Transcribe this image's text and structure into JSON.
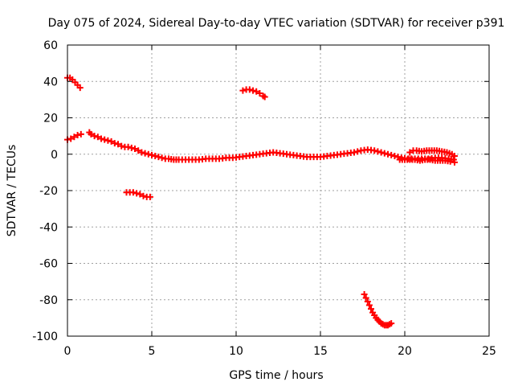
{
  "chart_data": {
    "type": "scatter",
    "title": "Day 075 of 2024, Sidereal Day-to-day VTEC variation (SDTVAR) for receiver p391",
    "xlabel": "GPS time / hours",
    "ylabel": "SDTVAR / TECUs",
    "xlim": [
      0,
      25
    ],
    "ylim": [
      -100,
      60
    ],
    "xticks": [
      0,
      5,
      10,
      15,
      20,
      25
    ],
    "yticks": [
      -100,
      -80,
      -60,
      -40,
      -20,
      0,
      20,
      40,
      60
    ],
    "grid": true,
    "marker": "plus",
    "colors": {
      "series": "#ff0000",
      "grid": "#a0a0a0",
      "axis": "#000000"
    },
    "series": [
      {
        "name": "trace-main-1",
        "points": [
          [
            0.0,
            8
          ],
          [
            0.2,
            8.5
          ],
          [
            0.4,
            9.5
          ],
          [
            0.6,
            10.5
          ],
          [
            0.8,
            11
          ]
        ]
      },
      {
        "name": "trace-high-start",
        "points": [
          [
            0.0,
            42
          ],
          [
            0.15,
            42
          ],
          [
            0.3,
            41
          ],
          [
            0.45,
            39.5
          ],
          [
            0.6,
            38
          ],
          [
            0.75,
            36.5
          ]
        ]
      },
      {
        "name": "trace-main-2",
        "points": [
          [
            1.3,
            12
          ],
          [
            1.4,
            11
          ],
          [
            1.6,
            10
          ],
          [
            1.8,
            9.5
          ],
          [
            2.0,
            8.5
          ],
          [
            2.2,
            8
          ],
          [
            2.4,
            7.5
          ],
          [
            2.6,
            7
          ],
          [
            2.8,
            6
          ],
          [
            3.0,
            5.5
          ],
          [
            3.2,
            4.5
          ],
          [
            3.4,
            4
          ],
          [
            3.6,
            4
          ],
          [
            3.8,
            3.5
          ],
          [
            4.0,
            3
          ],
          [
            4.2,
            2
          ],
          [
            4.4,
            1
          ],
          [
            4.6,
            0.5
          ],
          [
            4.8,
            0
          ],
          [
            5.0,
            -0.5
          ],
          [
            5.2,
            -1
          ],
          [
            5.4,
            -1.5
          ],
          [
            5.6,
            -2
          ],
          [
            5.8,
            -2.5
          ],
          [
            6.0,
            -2.5
          ],
          [
            6.3,
            -3
          ],
          [
            6.6,
            -3
          ],
          [
            7.0,
            -3
          ],
          [
            7.4,
            -3
          ],
          [
            7.8,
            -3
          ],
          [
            8.2,
            -2.5
          ],
          [
            8.6,
            -2.5
          ],
          [
            9.0,
            -2.5
          ],
          [
            9.4,
            -2
          ],
          [
            9.8,
            -2
          ],
          [
            10.2,
            -1.5
          ],
          [
            10.6,
            -1
          ],
          [
            11.0,
            -0.5
          ],
          [
            11.4,
            0
          ],
          [
            11.8,
            0.5
          ],
          [
            12.2,
            1
          ],
          [
            12.6,
            0.5
          ],
          [
            13.0,
            0
          ],
          [
            13.4,
            -0.5
          ],
          [
            13.8,
            -1
          ],
          [
            14.2,
            -1.5
          ],
          [
            14.6,
            -1.5
          ],
          [
            15.0,
            -1.5
          ],
          [
            15.4,
            -1
          ],
          [
            15.8,
            -0.5
          ],
          [
            16.2,
            0
          ],
          [
            16.6,
            0.5
          ],
          [
            17.0,
            1
          ],
          [
            17.4,
            2
          ],
          [
            17.8,
            2.5
          ],
          [
            18.2,
            2
          ],
          [
            18.6,
            1
          ],
          [
            19.0,
            0
          ],
          [
            19.4,
            -1
          ],
          [
            19.8,
            -2
          ],
          [
            20.2,
            -2.5
          ],
          [
            20.6,
            -2.5
          ],
          [
            21.0,
            -2.5
          ],
          [
            21.4,
            -2.5
          ],
          [
            21.8,
            -2
          ],
          [
            22.2,
            -2
          ],
          [
            22.6,
            -2.5
          ],
          [
            22.9,
            -3
          ]
        ]
      },
      {
        "name": "trace-neg-20",
        "points": [
          [
            3.5,
            -21
          ],
          [
            3.7,
            -21
          ],
          [
            3.9,
            -21
          ],
          [
            4.1,
            -21.5
          ],
          [
            4.3,
            -22
          ],
          [
            4.5,
            -23
          ],
          [
            4.7,
            -23.5
          ],
          [
            4.9,
            -23.5
          ]
        ]
      },
      {
        "name": "trace-high-mid",
        "points": [
          [
            10.4,
            35
          ],
          [
            10.6,
            35.5
          ],
          [
            10.8,
            35.5
          ],
          [
            11.0,
            35
          ],
          [
            11.2,
            34.5
          ],
          [
            11.4,
            33.5
          ],
          [
            11.6,
            32
          ],
          [
            11.7,
            31.5
          ]
        ]
      },
      {
        "name": "trace-low",
        "points": [
          [
            17.6,
            -77
          ],
          [
            17.7,
            -79
          ],
          [
            17.8,
            -81
          ],
          [
            17.9,
            -83
          ],
          [
            18.0,
            -85
          ],
          [
            18.1,
            -87
          ],
          [
            18.2,
            -88.5
          ],
          [
            18.3,
            -90
          ],
          [
            18.4,
            -91
          ],
          [
            18.5,
            -92
          ],
          [
            18.6,
            -93
          ],
          [
            18.7,
            -93.5
          ],
          [
            18.8,
            -94
          ],
          [
            18.9,
            -94
          ],
          [
            19.0,
            -94
          ],
          [
            19.1,
            -93.5
          ],
          [
            19.2,
            -93
          ]
        ]
      },
      {
        "name": "trace-late-upper",
        "points": [
          [
            20.3,
            1
          ],
          [
            20.5,
            2
          ],
          [
            20.7,
            2
          ],
          [
            21.0,
            1.5
          ],
          [
            21.3,
            2
          ],
          [
            21.6,
            2
          ],
          [
            21.9,
            2
          ],
          [
            22.2,
            1.5
          ],
          [
            22.5,
            1
          ],
          [
            22.8,
            0
          ],
          [
            22.95,
            -1
          ]
        ]
      },
      {
        "name": "trace-late-lower",
        "points": [
          [
            19.7,
            -3
          ],
          [
            20.0,
            -3
          ],
          [
            20.3,
            -3
          ],
          [
            20.6,
            -3
          ],
          [
            20.9,
            -3.5
          ],
          [
            21.2,
            -3
          ],
          [
            21.5,
            -3
          ],
          [
            21.8,
            -3.5
          ],
          [
            22.1,
            -3.5
          ],
          [
            22.4,
            -3.5
          ],
          [
            22.7,
            -4
          ],
          [
            22.95,
            -4.5
          ]
        ]
      }
    ]
  }
}
